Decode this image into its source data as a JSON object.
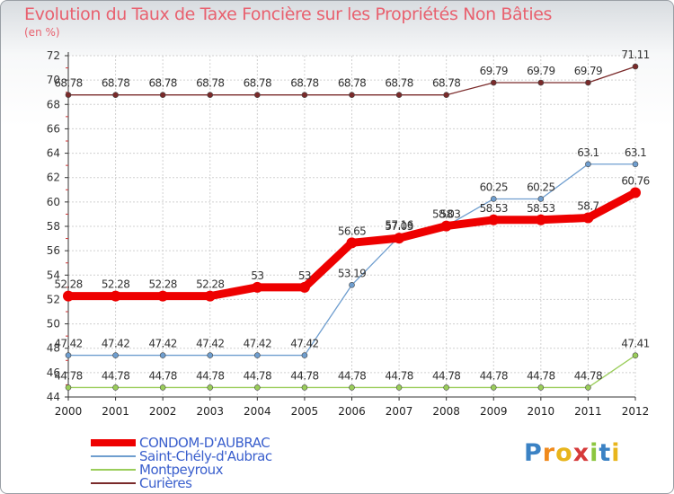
{
  "chart_data": {
    "type": "line",
    "title": "Evolution du Taux de Taxe Foncière sur les Propriétés Non Bâties",
    "subtitle": "(en %)",
    "xlabel": "",
    "ylabel": "",
    "categories": [
      "2000",
      "2001",
      "2002",
      "2003",
      "2004",
      "2005",
      "2006",
      "2007",
      "2008",
      "2009",
      "2010",
      "2011",
      "2012"
    ],
    "ylim": [
      44,
      72
    ],
    "yticks": [
      44,
      46,
      48,
      50,
      52,
      54,
      56,
      58,
      60,
      62,
      64,
      66,
      68,
      70,
      72
    ],
    "legend_position": "bottom-left",
    "series": [
      {
        "name": "Curières",
        "color": "#7a2a2a",
        "values": [
          68.78,
          68.78,
          68.78,
          68.78,
          68.78,
          68.78,
          68.78,
          68.78,
          68.78,
          69.79,
          69.79,
          69.79,
          71.11
        ],
        "labels": [
          "68.78",
          "68.78",
          "68.78",
          "68.78",
          "68.78",
          "68.78",
          "68.78",
          "68.78",
          "68.78",
          "69.79",
          "69.79",
          "69.79",
          "71.11"
        ]
      },
      {
        "name": "Saint-Chély-d'Aubrac",
        "color": "#6f9ecf",
        "values": [
          47.42,
          47.42,
          47.42,
          47.42,
          47.42,
          47.42,
          53.19,
          57.16,
          58.03,
          60.25,
          60.25,
          63.1,
          63.1
        ],
        "labels": [
          "47.42",
          "47.42",
          "47.42",
          "47.42",
          "47.42",
          "47.42",
          "53.19",
          "57.16",
          "58",
          "60.25",
          "60.25",
          "63.1",
          "63.1"
        ]
      },
      {
        "name": "Montpeyroux",
        "color": "#9acd5a",
        "values": [
          44.78,
          44.78,
          44.78,
          44.78,
          44.78,
          44.78,
          44.78,
          44.78,
          44.78,
          44.78,
          44.78,
          44.78,
          47.41
        ],
        "labels": [
          "44.78",
          "44.78",
          "44.78",
          "44.78",
          "44.78",
          "44.78",
          "44.78",
          "44.78",
          "44.78",
          "44.78",
          "44.78",
          "44.78",
          "47.41"
        ]
      },
      {
        "name": "CONDOM-D'AUBRAC",
        "color": "#ee0000",
        "values": [
          52.28,
          52.28,
          52.28,
          52.28,
          53,
          53,
          56.65,
          57.03,
          58.03,
          58.53,
          58.53,
          58.7,
          60.76
        ],
        "labels": [
          "52.28",
          "52.28",
          "52.28",
          "52.28",
          "53",
          "53",
          "56.65",
          "57.03",
          "58.03",
          "58.53",
          "58.53",
          "58.7",
          "60.76"
        ]
      }
    ]
  },
  "legend": {
    "items": [
      {
        "name": "CONDOM-D'AUBRAC",
        "color": "#ee0000"
      },
      {
        "name": "Saint-Chély-d'Aubrac",
        "color": "#6f9ecf"
      },
      {
        "name": "Montpeyroux",
        "color": "#9acd5a"
      },
      {
        "name": "Curières",
        "color": "#7a2a2a"
      }
    ]
  },
  "logo": {
    "letters": [
      "P",
      "r",
      "o",
      "x",
      "i",
      "t",
      "i"
    ],
    "colors": [
      "#3b82c4",
      "#f08a1c",
      "#e8b51c",
      "#d63a3a",
      "#8cc63f",
      "#3b82c4",
      "#e8b51c"
    ]
  }
}
